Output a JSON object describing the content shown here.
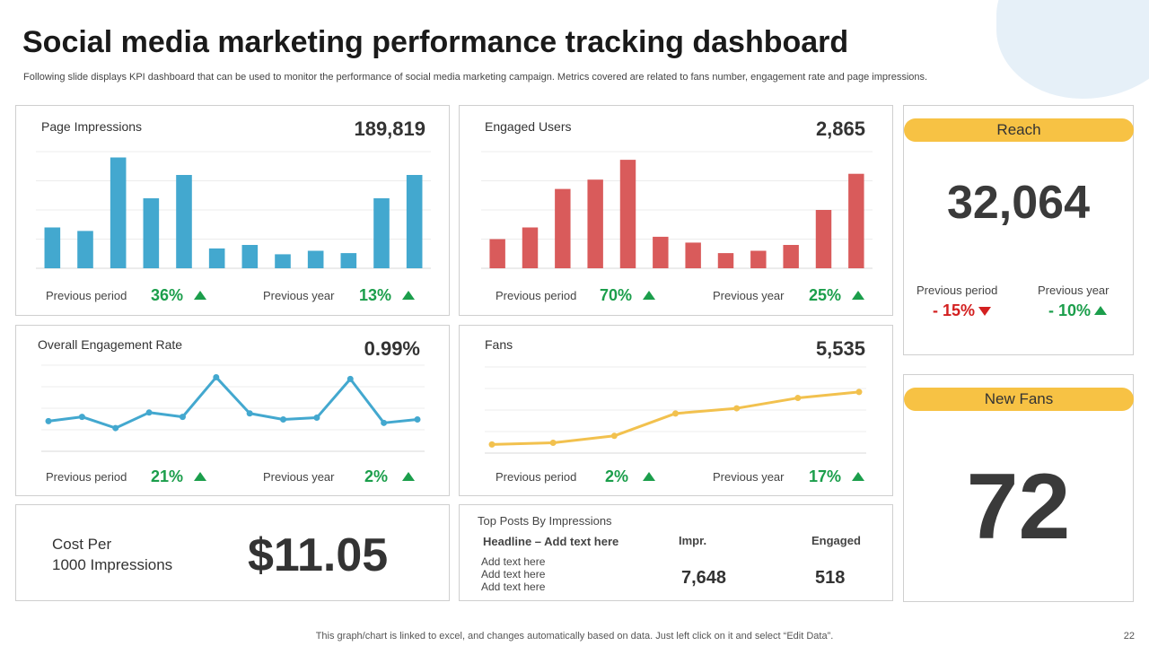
{
  "title": "Social media marketing performance tracking dashboard",
  "subtitle": "Following slide displays KPI dashboard that can be used to monitor the performance of social media marketing campaign. Metrics covered are related to fans number, engagement rate and page impressions.",
  "colors": {
    "blue": "#43a8cf",
    "red": "#d95b5b",
    "yellow": "#f2c14e",
    "green": "#1b9e4b",
    "down_red": "#d32020",
    "pill": "#f7c244"
  },
  "page_impressions": {
    "label": "Page Impressions",
    "value": "189,819",
    "prev_period_label": "Previous  period",
    "prev_period_pct": "36%",
    "prev_year_label": "Previous  year",
    "prev_year_pct": "13%"
  },
  "engaged_users": {
    "label": "Engaged Users",
    "value": "2,865",
    "prev_period_label": "Previous  period",
    "prev_period_pct": "70%",
    "prev_year_label": "Previous  year",
    "prev_year_pct": "25%"
  },
  "engagement_rate": {
    "label": "Overall Engagement Rate",
    "value": "0.99%",
    "prev_period_label": "Previous  period",
    "prev_period_pct": "21%",
    "prev_year_label": "Previous  year",
    "prev_year_pct": "2%"
  },
  "fans": {
    "label": "Fans",
    "value": "5,535",
    "prev_period_label": "Previous  period",
    "prev_period_pct": "2%",
    "prev_year_label": "Previous  year",
    "prev_year_pct": "17%"
  },
  "reach": {
    "label": "Reach",
    "value": "32,064",
    "prev_period_label": "Previous  period",
    "prev_period_pct": "- 15%",
    "prev_year_label": "Previous  year",
    "prev_year_pct": "- 10%"
  },
  "new_fans": {
    "label": "New Fans",
    "value": "72"
  },
  "cpm": {
    "label_line1": "Cost Per",
    "label_line2": "1000 Impressions",
    "value": "$11.05"
  },
  "top_posts": {
    "title": "Top Posts By Impressions",
    "col_headline": "Headline – Add text here",
    "col_impr": "Impr.",
    "col_engaged": "Engaged",
    "rows": [
      "Add text here",
      "Add text here",
      "Add text here"
    ],
    "impr_value": "7,648",
    "engaged_value": "518"
  },
  "footer_note": "This graph/chart is linked to excel,  and changes automatically based on data. Just left click on it and select “Edit Data”.",
  "page_number": "22",
  "chart_data": [
    {
      "id": "page_impressions",
      "type": "bar",
      "title": "Page Impressions",
      "ylim": [
        0,
        100
      ],
      "grid": true,
      "values": [
        35,
        32,
        95,
        60,
        80,
        17,
        20,
        12,
        15,
        13,
        60,
        80
      ]
    },
    {
      "id": "engaged_users",
      "type": "bar",
      "title": "Engaged Users",
      "ylim": [
        0,
        100
      ],
      "grid": true,
      "values": [
        25,
        35,
        68,
        76,
        93,
        27,
        22,
        13,
        15,
        20,
        50,
        81
      ]
    },
    {
      "id": "engagement_rate",
      "type": "line",
      "title": "Overall Engagement Rate",
      "ylim": [
        0,
        100
      ],
      "grid": true,
      "values": [
        35,
        40,
        27,
        45,
        40,
        86,
        44,
        37,
        39,
        84,
        33,
        37
      ]
    },
    {
      "id": "fans",
      "type": "line",
      "title": "Fans",
      "ylim": [
        0,
        100
      ],
      "grid": true,
      "values": [
        10,
        12,
        20,
        46,
        52,
        64,
        71
      ]
    }
  ]
}
